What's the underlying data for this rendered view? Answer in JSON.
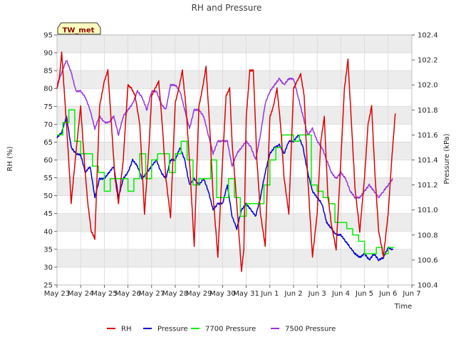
{
  "chart_data": {
    "type": "line",
    "title": "RH and Pressure",
    "xlabel": "Time",
    "ylabel_left": "RH (%)",
    "ylabel_right": "Pressure (kPa)",
    "badge": "TW_met",
    "x_ticks": [
      "May 23",
      "May 24",
      "May 25",
      "May 26",
      "May 27",
      "May 28",
      "May 29",
      "May 30",
      "May 31",
      "Jun 1",
      "Jun 2",
      "Jun 3",
      "Jun 4",
      "Jun 5",
      "Jun 6",
      "Jun 7"
    ],
    "xlim_days": [
      0,
      15
    ],
    "ylim_left": [
      25,
      95
    ],
    "ylim_right": [
      100.4,
      102.4
    ],
    "y_ticks_left": [
      25,
      30,
      35,
      40,
      45,
      50,
      55,
      60,
      65,
      70,
      75,
      80,
      85,
      90,
      95
    ],
    "y_ticks_right": [
      "100.4",
      "100.6",
      "100.8",
      "101.0",
      "101.2",
      "101.4",
      "101.6",
      "101.8",
      "102.0",
      "102.2",
      "102.4"
    ],
    "legend": [
      {
        "name": "RH",
        "color": "#dd0000"
      },
      {
        "name": "Pressure",
        "color": "#0000cc"
      },
      {
        "name": "7700 Pressure",
        "color": "#00ee00"
      },
      {
        "name": "7500 Pressure",
        "color": "#9933dd"
      }
    ],
    "series": [
      {
        "name": "RH",
        "axis": "left",
        "color": "#dd0000",
        "x": [
          0.0,
          0.1,
          0.2,
          0.3,
          0.45,
          0.6,
          0.8,
          1.0,
          1.15,
          1.3,
          1.45,
          1.6,
          1.8,
          2.0,
          2.15,
          2.3,
          2.45,
          2.6,
          2.8,
          3.0,
          3.15,
          3.3,
          3.5,
          3.7,
          3.9,
          4.0,
          4.15,
          4.3,
          4.45,
          4.6,
          4.8,
          5.0,
          5.15,
          5.3,
          5.45,
          5.6,
          5.8,
          6.0,
          6.15,
          6.3,
          6.45,
          6.6,
          6.8,
          7.0,
          7.15,
          7.3,
          7.4,
          7.6,
          7.8,
          7.9,
          8.0,
          8.15,
          8.3,
          8.45,
          8.6,
          8.8,
          9.0,
          9.15,
          9.3,
          9.45,
          9.6,
          9.8,
          10.0,
          10.15,
          10.3,
          10.45,
          10.6,
          10.8,
          11.0,
          11.15,
          11.3,
          11.45,
          11.6,
          11.8,
          12.0,
          12.15,
          12.3,
          12.45,
          12.6,
          12.8,
          13.0,
          13.15,
          13.3,
          13.45,
          13.6,
          13.8,
          14.0,
          14.15,
          14.3
        ],
        "y": [
          80,
          83,
          90,
          80,
          65,
          48,
          62,
          75,
          60,
          48,
          40,
          38,
          75,
          82,
          85,
          70,
          55,
          48,
          60,
          81,
          80,
          78,
          70,
          45,
          65,
          78,
          80,
          82,
          70,
          55,
          44,
          76,
          80,
          85,
          75,
          60,
          36,
          75,
          80,
          86,
          70,
          50,
          33,
          60,
          78,
          80,
          65,
          48,
          29,
          35,
          72,
          85,
          85,
          60,
          45,
          36,
          72,
          75,
          80,
          70,
          55,
          45,
          80,
          82,
          84,
          78,
          55,
          33,
          45,
          65,
          72,
          50,
          42,
          35,
          60,
          80,
          88,
          70,
          52,
          40,
          55,
          70,
          75,
          55,
          40,
          33,
          45,
          60,
          73
        ]
      },
      {
        "name": "Pressure",
        "axis": "right",
        "color": "#0000cc",
        "x": [
          0.0,
          0.2,
          0.4,
          0.6,
          0.8,
          1.0,
          1.2,
          1.4,
          1.6,
          1.8,
          2.0,
          2.2,
          2.4,
          2.6,
          2.8,
          3.0,
          3.2,
          3.4,
          3.6,
          3.8,
          4.0,
          4.2,
          4.4,
          4.6,
          4.8,
          5.0,
          5.2,
          5.4,
          5.6,
          5.8,
          6.0,
          6.2,
          6.4,
          6.6,
          6.8,
          7.0,
          7.2,
          7.4,
          7.6,
          7.8,
          8.0,
          8.2,
          8.4,
          8.6,
          8.8,
          9.0,
          9.2,
          9.4,
          9.6,
          9.8,
          10.0,
          10.2,
          10.4,
          10.6,
          10.8,
          11.0,
          11.2,
          11.4,
          11.6,
          11.8,
          12.0,
          12.2,
          12.4,
          12.6,
          12.8,
          13.0,
          13.2,
          13.4,
          13.6,
          13.8,
          14.0,
          14.2
        ],
        "y": [
          101.58,
          101.62,
          101.75,
          101.5,
          101.45,
          101.44,
          101.3,
          101.35,
          101.1,
          101.25,
          101.25,
          101.3,
          101.35,
          101.1,
          101.25,
          101.3,
          101.4,
          101.35,
          101.25,
          101.3,
          101.35,
          101.4,
          101.3,
          101.25,
          101.4,
          101.4,
          101.5,
          101.4,
          101.2,
          101.25,
          101.2,
          101.25,
          101.15,
          101.0,
          101.05,
          101.05,
          101.2,
          100.95,
          100.85,
          101.0,
          101.05,
          101.0,
          100.95,
          101.1,
          101.3,
          101.45,
          101.5,
          101.52,
          101.45,
          101.55,
          101.55,
          101.6,
          101.5,
          101.3,
          101.15,
          101.1,
          101.05,
          100.9,
          100.85,
          100.8,
          100.8,
          100.75,
          100.7,
          100.65,
          100.62,
          100.65,
          100.6,
          100.65,
          100.6,
          100.62,
          100.7,
          100.68
        ]
      },
      {
        "name": "7700 Pressure",
        "axis": "right",
        "color": "#00ee00",
        "x": [
          0.0,
          0.25,
          0.5,
          0.75,
          1.0,
          1.25,
          1.5,
          1.75,
          2.0,
          2.25,
          2.5,
          2.75,
          3.0,
          3.25,
          3.5,
          3.75,
          4.0,
          4.25,
          4.5,
          4.75,
          5.0,
          5.25,
          5.5,
          5.75,
          6.0,
          6.25,
          6.5,
          6.75,
          7.0,
          7.25,
          7.5,
          7.75,
          8.0,
          8.25,
          8.5,
          8.75,
          9.0,
          9.25,
          9.5,
          9.75,
          10.0,
          10.25,
          10.5,
          10.75,
          11.0,
          11.25,
          11.5,
          11.75,
          12.0,
          12.25,
          12.5,
          12.75,
          13.0,
          13.25,
          13.5,
          13.75,
          14.0,
          14.25
        ],
        "y": [
          101.6,
          101.7,
          101.8,
          101.55,
          101.45,
          101.45,
          101.35,
          101.3,
          101.15,
          101.25,
          101.25,
          101.25,
          101.15,
          101.25,
          101.45,
          101.25,
          101.4,
          101.45,
          101.45,
          101.3,
          101.45,
          101.55,
          101.4,
          101.2,
          101.25,
          101.25,
          101.4,
          101.1,
          101.1,
          101.25,
          101.1,
          100.95,
          101.05,
          101.05,
          101.05,
          101.2,
          101.4,
          101.5,
          101.6,
          101.6,
          101.55,
          101.6,
          101.6,
          101.2,
          101.15,
          101.1,
          101.05,
          100.9,
          100.9,
          100.85,
          100.8,
          100.75,
          100.65,
          100.65,
          100.7,
          100.65,
          100.7,
          100.7
        ]
      },
      {
        "name": "7500 Pressure",
        "axis": "right",
        "color": "#9933dd",
        "x": [
          0.0,
          0.2,
          0.4,
          0.6,
          0.8,
          1.0,
          1.2,
          1.4,
          1.6,
          1.8,
          2.0,
          2.2,
          2.4,
          2.6,
          2.8,
          3.0,
          3.2,
          3.4,
          3.6,
          3.8,
          4.0,
          4.2,
          4.4,
          4.6,
          4.8,
          5.0,
          5.2,
          5.4,
          5.6,
          5.8,
          6.0,
          6.2,
          6.4,
          6.6,
          6.8,
          7.0,
          7.2,
          7.4,
          7.6,
          7.8,
          8.0,
          8.2,
          8.4,
          8.6,
          8.8,
          9.0,
          9.2,
          9.4,
          9.6,
          9.8,
          10.0,
          10.2,
          10.4,
          10.6,
          10.8,
          11.0,
          11.2,
          11.4,
          11.6,
          11.8,
          12.0,
          12.2,
          12.4,
          12.6,
          12.8,
          13.0,
          13.2,
          13.4,
          13.6,
          13.8,
          14.0,
          14.2
        ],
        "y": [
          102.0,
          102.1,
          102.2,
          102.1,
          101.95,
          101.95,
          101.9,
          101.8,
          101.65,
          101.75,
          101.7,
          101.7,
          101.75,
          101.6,
          101.75,
          101.8,
          101.85,
          101.95,
          101.9,
          101.8,
          101.95,
          101.95,
          101.85,
          101.8,
          102.0,
          102.0,
          101.95,
          101.8,
          101.65,
          101.8,
          101.8,
          101.75,
          101.6,
          101.45,
          101.55,
          101.55,
          101.55,
          101.35,
          101.45,
          101.5,
          101.55,
          101.5,
          101.4,
          101.6,
          101.85,
          101.95,
          102.0,
          102.05,
          102.0,
          102.05,
          102.05,
          101.9,
          101.75,
          101.6,
          101.65,
          101.55,
          101.5,
          101.4,
          101.3,
          101.25,
          101.3,
          101.25,
          101.15,
          101.1,
          101.1,
          101.15,
          101.2,
          101.15,
          101.1,
          101.15,
          101.2,
          101.25
        ]
      }
    ]
  }
}
